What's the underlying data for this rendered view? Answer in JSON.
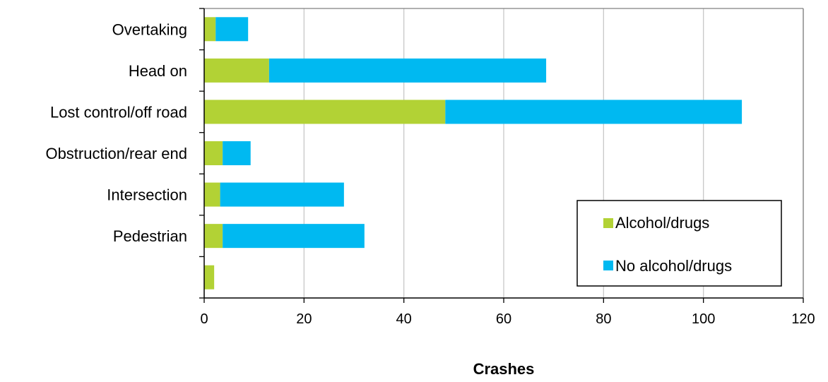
{
  "chart_data": {
    "type": "bar",
    "orientation": "horizontal",
    "stacked": true,
    "categories": [
      "Overtaking",
      "Head on",
      "Lost control/off road",
      "Obstruction/rear end",
      "Intersection",
      "Pedestrian",
      ""
    ],
    "series": [
      {
        "name": "Alcohol/drugs",
        "color": "#b2d235",
        "values": [
          2.3,
          13,
          48.3,
          3.7,
          3.2,
          3.7,
          2
        ]
      },
      {
        "name": "No alcohol/drugs",
        "color": "#00b9f1",
        "values": [
          6.5,
          55.5,
          59.4,
          5.6,
          24.8,
          28.4,
          0
        ]
      }
    ],
    "xlabel": "Crashes",
    "ylabel": "",
    "xlim": [
      0,
      120
    ],
    "xticks": [
      "0",
      "20",
      "40",
      "60",
      "80",
      "100",
      "120"
    ],
    "grid": "vertical",
    "legend_position": "lower-right"
  }
}
